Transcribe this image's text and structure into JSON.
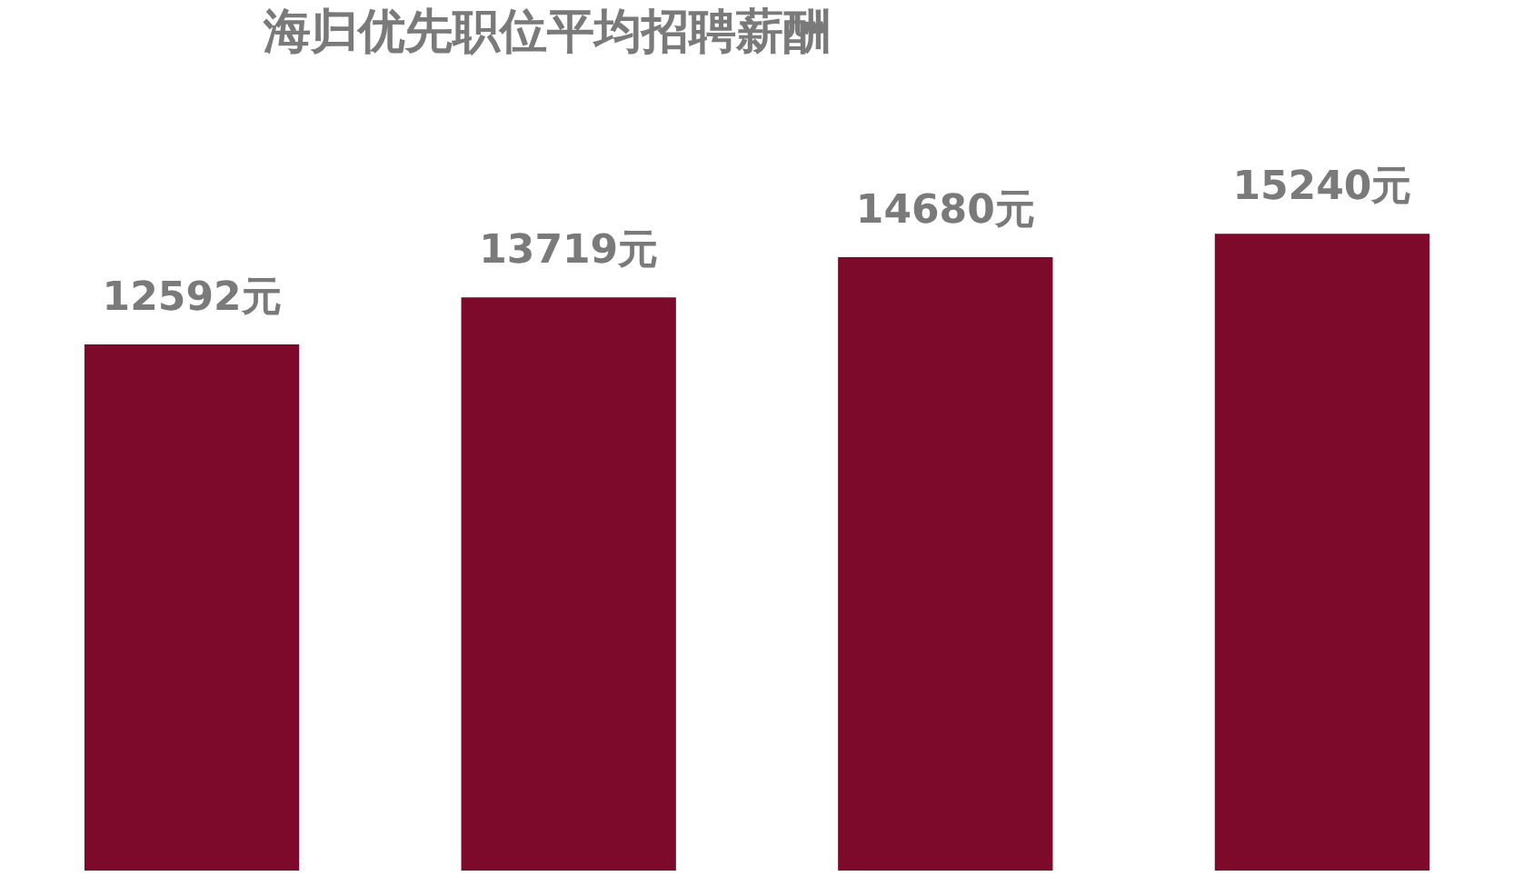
{
  "chart_data": {
    "type": "bar",
    "title": "海归优先职位平均招聘薪酬",
    "categories": [
      null,
      null,
      null,
      null
    ],
    "values": [
      12592,
      13719,
      14680,
      15240
    ],
    "value_labels": [
      "12592元",
      "13719元",
      "14680元",
      "15240元"
    ],
    "color": "#7d0a2a",
    "grid": false
  }
}
